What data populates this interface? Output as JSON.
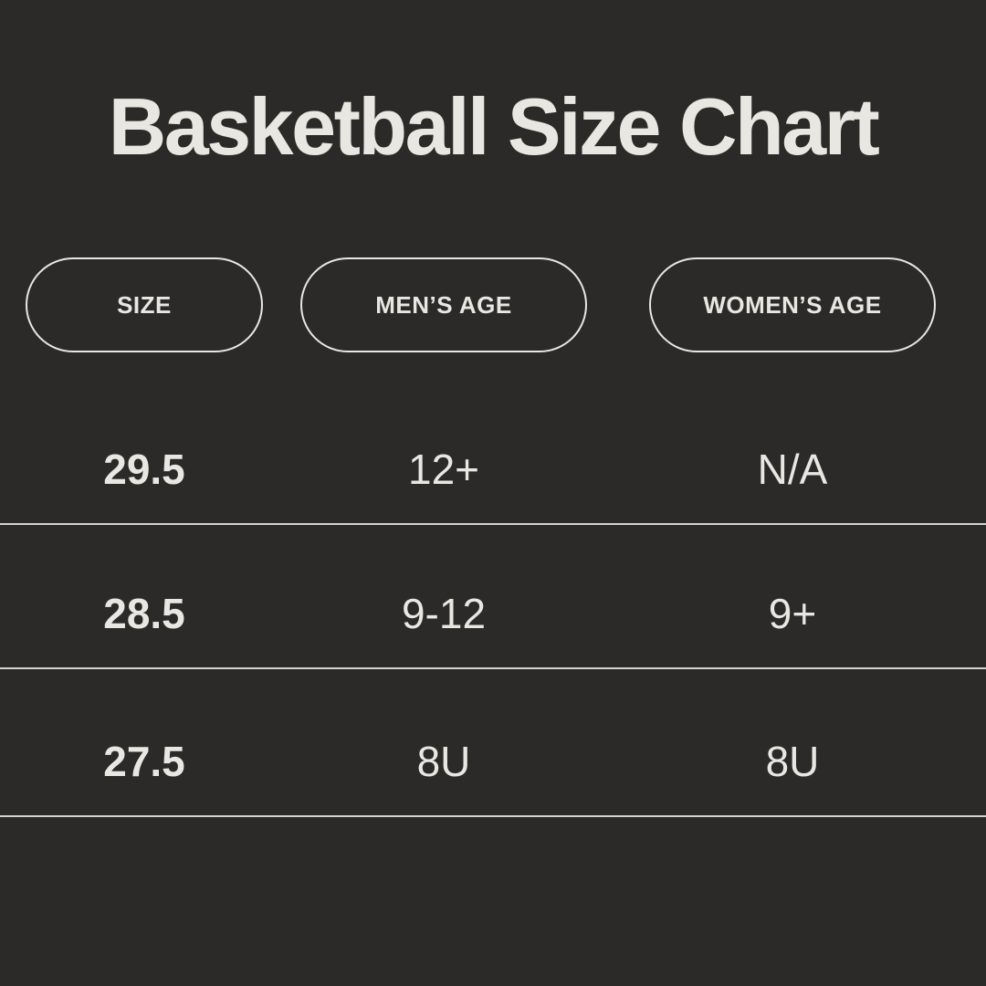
{
  "page": {
    "background_color": "#2b2a28",
    "text_color": "#e9e7e2",
    "divider_color": "#d6d4ce",
    "pill_border_color": "#e9e7e2"
  },
  "chart_data": {
    "type": "table",
    "title": "Basketball Size Chart",
    "columns": [
      "SIZE",
      "MEN’S AGE",
      "WOMEN’S AGE"
    ],
    "rows": [
      [
        "29.5",
        "12+",
        "N/A"
      ],
      [
        "28.5",
        "9-12",
        "9+"
      ],
      [
        "27.5",
        "8U",
        "8U"
      ]
    ]
  }
}
